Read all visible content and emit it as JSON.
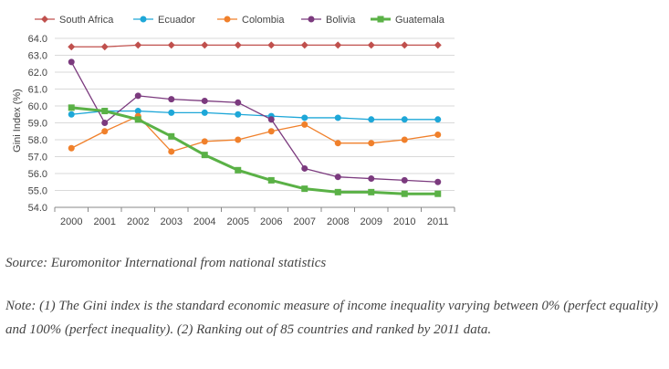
{
  "chart_data": {
    "type": "line",
    "title": "",
    "xlabel": "",
    "ylabel": "Gini Index (%)",
    "ylim": [
      54.0,
      64.0
    ],
    "yticks": [
      "54.0",
      "55.0",
      "56.0",
      "57.0",
      "58.0",
      "59.0",
      "60.0",
      "61.0",
      "62.0",
      "63.0",
      "64.0"
    ],
    "categories": [
      "2000",
      "2001",
      "2002",
      "2003",
      "2004",
      "2005",
      "2006",
      "2007",
      "2008",
      "2009",
      "2010",
      "2011"
    ],
    "grid": "horizontal",
    "legend": "top",
    "series": [
      {
        "name": "South Africa",
        "color": "#c0504d",
        "marker": "diamond",
        "values": [
          63.5,
          63.5,
          63.6,
          63.6,
          63.6,
          63.6,
          63.6,
          63.6,
          63.6,
          63.6,
          63.6,
          63.6
        ]
      },
      {
        "name": "Ecuador",
        "color": "#1ea7d8",
        "marker": "circle",
        "values": [
          59.5,
          59.7,
          59.7,
          59.6,
          59.6,
          59.5,
          59.4,
          59.3,
          59.3,
          59.2,
          59.2,
          59.2
        ]
      },
      {
        "name": "Colombia",
        "color": "#f0802b",
        "marker": "circle",
        "values": [
          57.5,
          58.5,
          59.4,
          57.3,
          57.9,
          58.0,
          58.5,
          58.9,
          57.8,
          57.8,
          58.0,
          58.3
        ]
      },
      {
        "name": "Bolivia",
        "color": "#7b3a7e",
        "marker": "circle",
        "values": [
          62.6,
          59.0,
          60.6,
          60.4,
          60.3,
          60.2,
          59.2,
          56.3,
          55.8,
          55.7,
          55.6,
          55.5
        ]
      },
      {
        "name": "Guatemala",
        "color": "#5ab146",
        "marker": "square",
        "width": 3,
        "values": [
          59.9,
          59.7,
          59.2,
          58.2,
          57.1,
          56.2,
          55.6,
          55.1,
          54.9,
          54.9,
          54.8,
          54.8
        ]
      }
    ]
  },
  "source": "Source: Euromonitor International from national statistics",
  "note": "Note: (1) The Gini index is the standard economic measure of income inequality varying between 0% (perfect equality) and 100% (perfect inequality). (2) Ranking out of 85 countries and ranked by 2011 data."
}
